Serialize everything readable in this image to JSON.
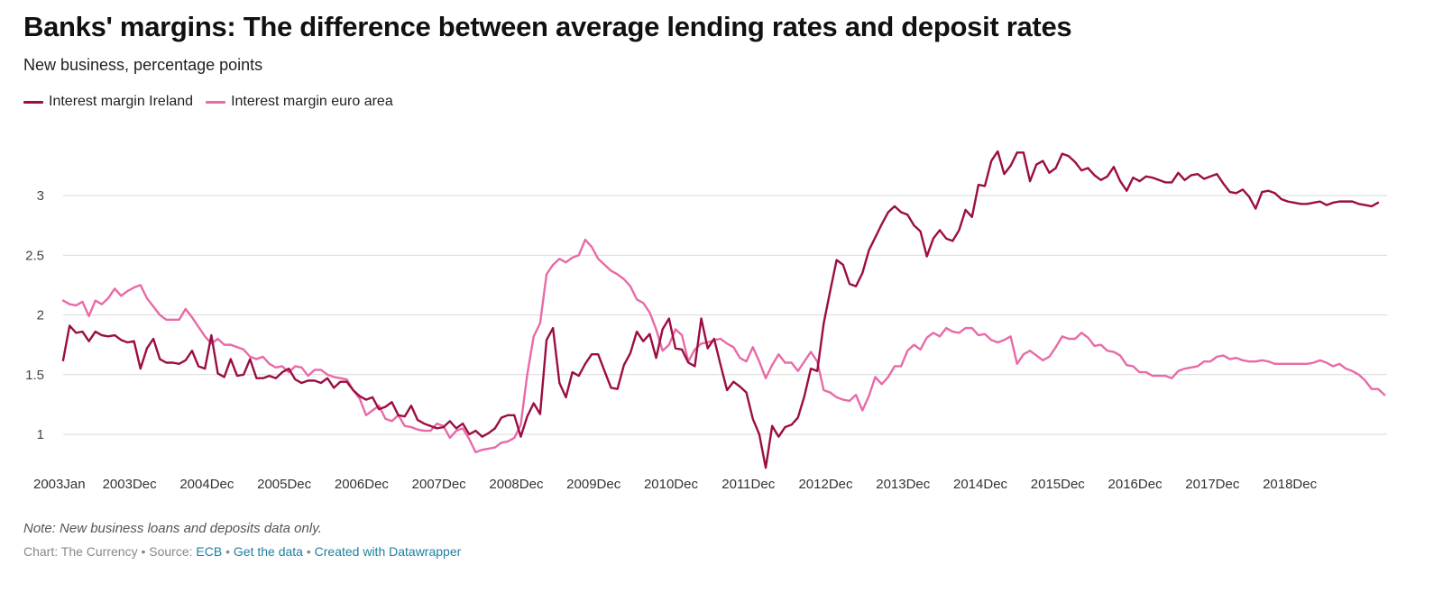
{
  "header": {
    "title": "Banks' margins: The difference between average lending rates and deposit rates",
    "subtitle": "New business, percentage points"
  },
  "legend": [
    {
      "label": "Interest margin Ireland",
      "color": "#9b0d43"
    },
    {
      "label": "Interest margin euro area",
      "color": "#e86aa8"
    }
  ],
  "footer": {
    "note": "Note: New business loans and deposits data only.",
    "credit": "Chart: The Currency",
    "separator": " • ",
    "source_prefix": "Source: ",
    "source_link": "ECB",
    "get_data_link": "Get the data",
    "created_with_link": "Created with Datawrapper"
  },
  "chart_data": {
    "type": "line",
    "title": "Banks' margins: The difference between average lending rates and deposit rates",
    "subtitle": "New business, percentage points",
    "xlabel": "",
    "ylabel": "",
    "ylim": [
      0.7,
      3.45
    ],
    "yticks": [
      1,
      1.5,
      2,
      2.5,
      3
    ],
    "ytick_labels": [
      "1",
      "1.5",
      "2",
      "2.5",
      "3"
    ],
    "grid": true,
    "legend_position": "top-left",
    "x_start": "2003Jan",
    "x_ticks": [
      {
        "label": "2003Jan",
        "index": 0
      },
      {
        "label": "2003Dec",
        "index": 11
      },
      {
        "label": "2004Dec",
        "index": 23
      },
      {
        "label": "2005Dec",
        "index": 35
      },
      {
        "label": "2006Dec",
        "index": 47
      },
      {
        "label": "2007Dec",
        "index": 59
      },
      {
        "label": "2008Dec",
        "index": 71
      },
      {
        "label": "2009Dec",
        "index": 83
      },
      {
        "label": "2010Dec",
        "index": 95
      },
      {
        "label": "2011Dec",
        "index": 107
      },
      {
        "label": "2012Dec",
        "index": 119
      },
      {
        "label": "2013Dec",
        "index": 131
      },
      {
        "label": "2014Dec",
        "index": 143
      },
      {
        "label": "2015Dec",
        "index": 155
      },
      {
        "label": "2016Dec",
        "index": 167
      },
      {
        "label": "2017Dec",
        "index": 179
      },
      {
        "label": "2018Dec",
        "index": 191
      }
    ],
    "series": [
      {
        "name": "Interest margin Ireland",
        "color": "#9b0d43",
        "values": [
          1.62,
          1.91,
          1.85,
          1.86,
          1.78,
          1.86,
          1.83,
          1.82,
          1.83,
          1.79,
          1.77,
          1.78,
          1.55,
          1.72,
          1.8,
          1.63,
          1.6,
          1.6,
          1.59,
          1.62,
          1.7,
          1.57,
          1.55,
          1.83,
          1.51,
          1.48,
          1.63,
          1.49,
          1.5,
          1.63,
          1.47,
          1.47,
          1.49,
          1.47,
          1.52,
          1.55,
          1.46,
          1.43,
          1.45,
          1.45,
          1.43,
          1.47,
          1.39,
          1.44,
          1.44,
          1.37,
          1.32,
          1.29,
          1.31,
          1.21,
          1.23,
          1.27,
          1.16,
          1.15,
          1.24,
          1.12,
          1.09,
          1.07,
          1.05,
          1.06,
          1.11,
          1.05,
          1.09,
          1.0,
          1.03,
          0.98,
          1.01,
          1.05,
          1.14,
          1.16,
          1.16,
          0.98,
          1.15,
          1.26,
          1.17,
          1.79,
          1.89,
          1.43,
          1.31,
          1.52,
          1.49,
          1.59,
          1.67,
          1.67,
          1.53,
          1.39,
          1.38,
          1.58,
          1.68,
          1.86,
          1.78,
          1.84,
          1.64,
          1.88,
          1.97,
          1.72,
          1.71,
          1.6,
          1.57,
          1.97,
          1.72,
          1.8,
          1.58,
          1.37,
          1.44,
          1.4,
          1.35,
          1.13,
          1.0,
          0.72,
          1.07,
          0.98,
          1.06,
          1.08,
          1.14,
          1.32,
          1.55,
          1.53,
          1.93,
          2.2,
          2.46,
          2.42,
          2.26,
          2.24,
          2.35,
          2.54,
          2.65,
          2.76,
          2.86,
          2.91,
          2.86,
          2.84,
          2.75,
          2.7,
          2.49,
          2.64,
          2.71,
          2.64,
          2.62,
          2.71,
          2.88,
          2.82,
          3.09,
          3.08,
          3.29,
          3.37,
          3.18,
          3.25,
          3.36,
          3.36,
          3.12,
          3.26,
          3.29,
          3.19,
          3.23,
          3.35,
          3.33,
          3.28,
          3.21,
          3.23,
          3.17,
          3.13,
          3.16,
          3.24,
          3.12,
          3.04,
          3.15,
          3.12,
          3.16,
          3.15,
          3.13,
          3.11,
          3.11,
          3.19,
          3.13,
          3.17,
          3.18,
          3.14,
          3.16,
          3.18,
          3.1,
          3.03,
          3.02,
          3.05,
          2.99,
          2.89,
          3.03,
          3.04,
          3.02,
          2.97,
          2.95,
          2.94,
          2.93,
          2.93,
          2.94,
          2.95,
          2.92,
          2.94,
          2.95,
          2.95,
          2.95,
          2.93,
          2.92,
          2.91,
          2.94
        ]
      },
      {
        "name": "Interest margin euro area",
        "color": "#e86aa8",
        "values": [
          2.12,
          2.09,
          2.08,
          2.11,
          1.99,
          2.12,
          2.09,
          2.14,
          2.22,
          2.16,
          2.2,
          2.23,
          2.25,
          2.14,
          2.07,
          2.0,
          1.96,
          1.96,
          1.96,
          2.05,
          1.98,
          1.9,
          1.82,
          1.76,
          1.8,
          1.75,
          1.75,
          1.73,
          1.71,
          1.65,
          1.63,
          1.65,
          1.59,
          1.56,
          1.57,
          1.52,
          1.57,
          1.56,
          1.49,
          1.54,
          1.54,
          1.5,
          1.48,
          1.47,
          1.46,
          1.37,
          1.3,
          1.16,
          1.2,
          1.24,
          1.13,
          1.11,
          1.16,
          1.07,
          1.06,
          1.04,
          1.03,
          1.03,
          1.09,
          1.07,
          0.97,
          1.03,
          1.05,
          0.96,
          0.85,
          0.87,
          0.88,
          0.89,
          0.93,
          0.94,
          0.97,
          1.08,
          1.5,
          1.82,
          1.93,
          2.34,
          2.42,
          2.47,
          2.44,
          2.48,
          2.5,
          2.63,
          2.57,
          2.47,
          2.42,
          2.37,
          2.34,
          2.3,
          2.24,
          2.13,
          2.1,
          2.02,
          1.88,
          1.7,
          1.75,
          1.88,
          1.83,
          1.61,
          1.71,
          1.76,
          1.77,
          1.79,
          1.8,
          1.76,
          1.73,
          1.64,
          1.61,
          1.73,
          1.61,
          1.47,
          1.58,
          1.67,
          1.6,
          1.6,
          1.53,
          1.61,
          1.69,
          1.61,
          1.37,
          1.35,
          1.31,
          1.29,
          1.28,
          1.33,
          1.2,
          1.32,
          1.48,
          1.42,
          1.48,
          1.57,
          1.57,
          1.7,
          1.75,
          1.71,
          1.81,
          1.85,
          1.82,
          1.89,
          1.86,
          1.85,
          1.89,
          1.89,
          1.83,
          1.84,
          1.79,
          1.77,
          1.79,
          1.82,
          1.59,
          1.67,
          1.7,
          1.66,
          1.62,
          1.65,
          1.73,
          1.82,
          1.8,
          1.8,
          1.85,
          1.81,
          1.74,
          1.75,
          1.7,
          1.69,
          1.66,
          1.58,
          1.57,
          1.52,
          1.52,
          1.49,
          1.49,
          1.49,
          1.47,
          1.53,
          1.55,
          1.56,
          1.57,
          1.61,
          1.61,
          1.65,
          1.66,
          1.63,
          1.64,
          1.62,
          1.61,
          1.61,
          1.62,
          1.61,
          1.59,
          1.59,
          1.59,
          1.59,
          1.59,
          1.59,
          1.6,
          1.62,
          1.6,
          1.57,
          1.59,
          1.55,
          1.53,
          1.5,
          1.45,
          1.38,
          1.38,
          1.33
        ]
      }
    ]
  }
}
